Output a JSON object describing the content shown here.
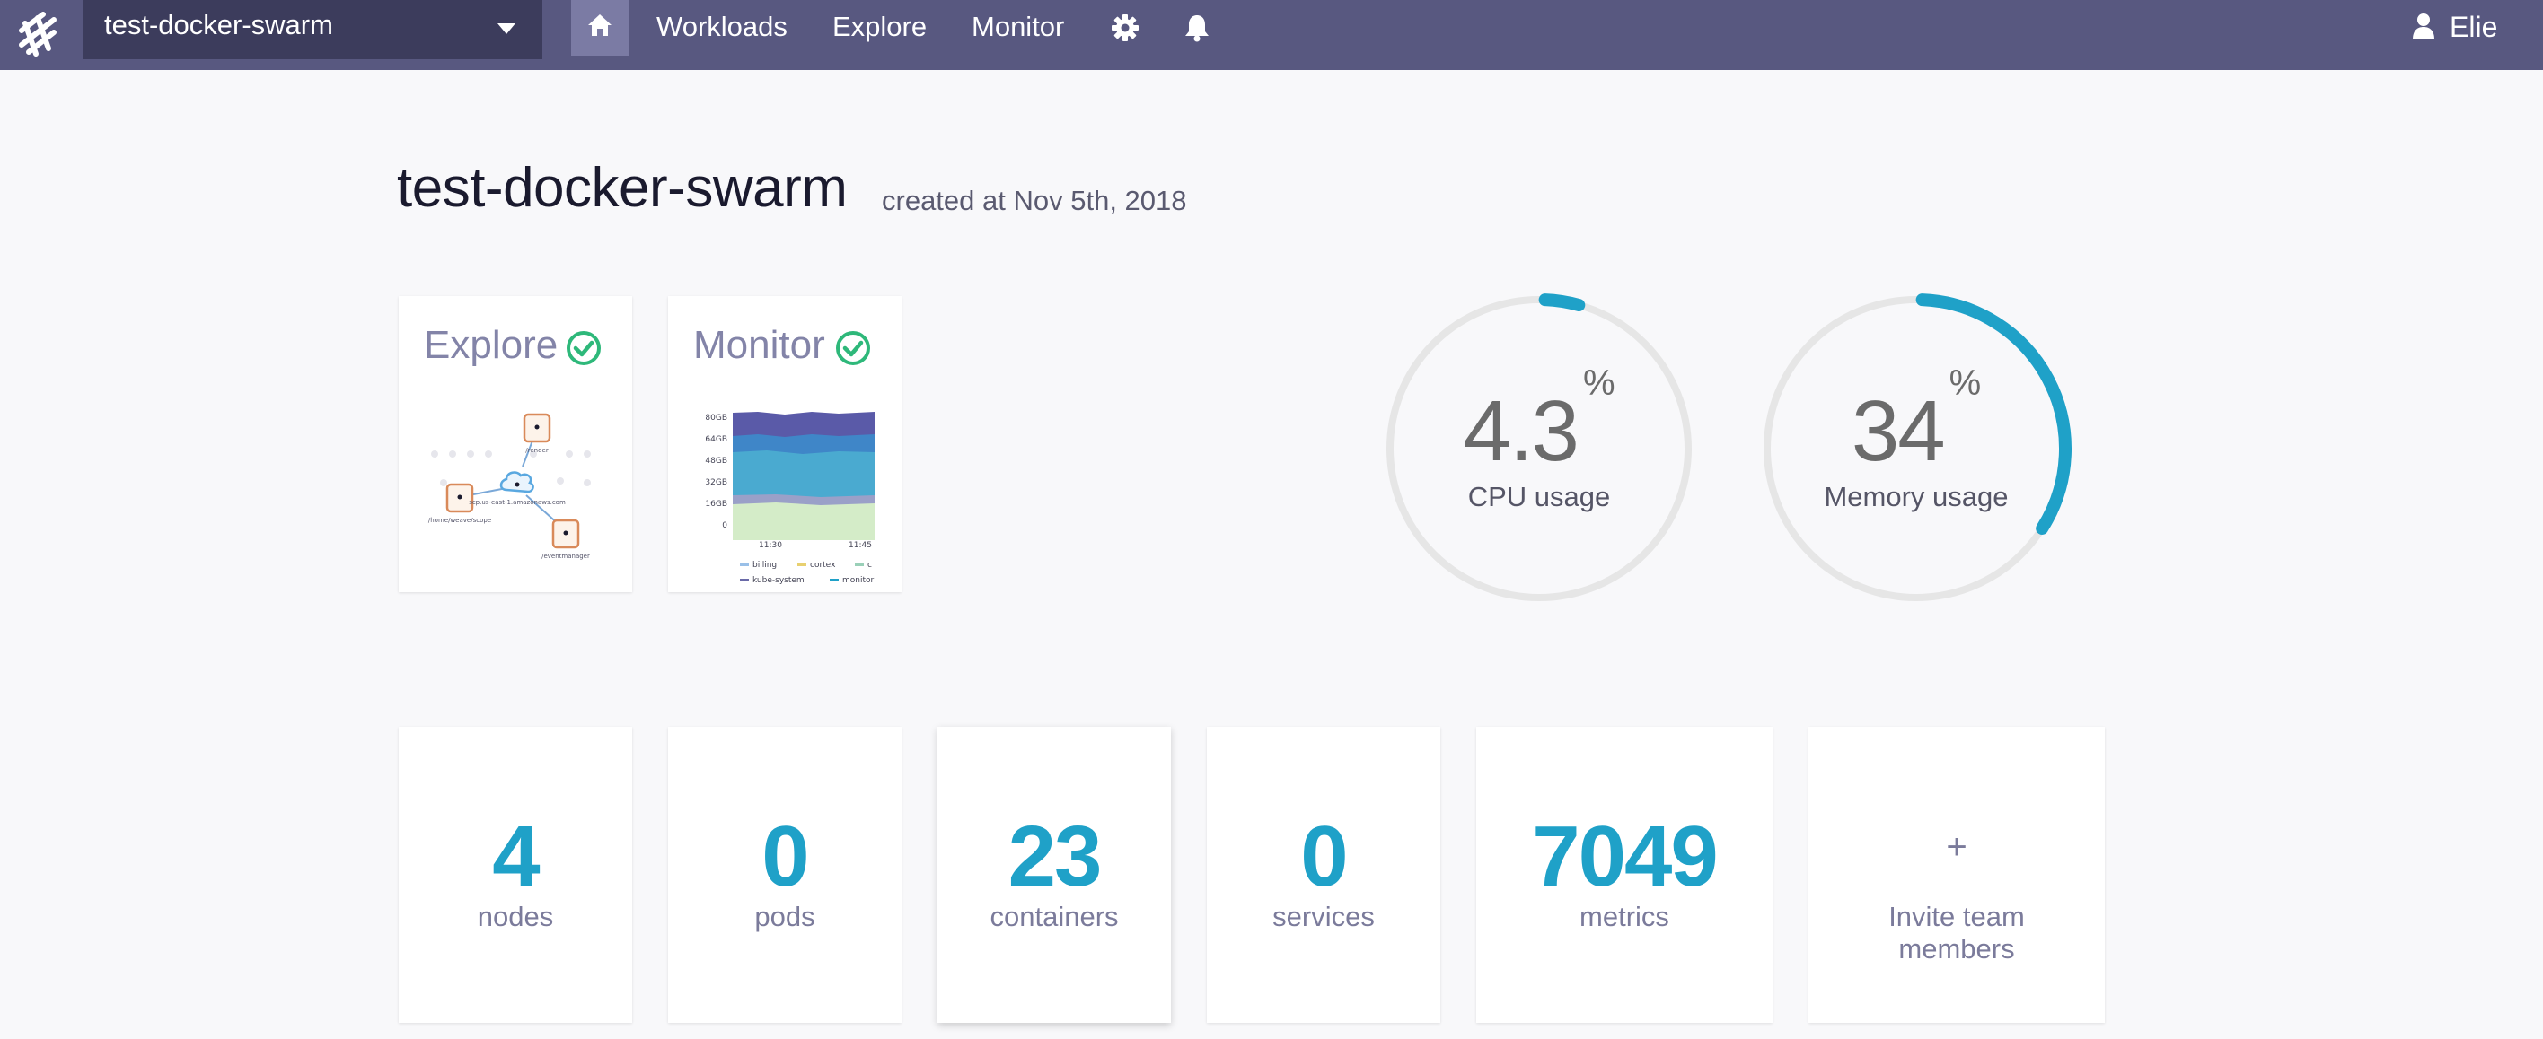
{
  "nav": {
    "instance_name": "test-docker-swarm",
    "links": [
      "Workloads",
      "Explore",
      "Monitor"
    ],
    "user": "Elie"
  },
  "header": {
    "title": "test-docker-swarm",
    "created": "created at Nov 5th, 2018"
  },
  "previews": {
    "explore": {
      "title": "Explore",
      "node_labels": [
        "/render",
        "/home/weave/scope",
        "scp.us-east-1.amazonaws.com",
        "/eventmanager"
      ]
    },
    "monitor": {
      "title": "Monitor",
      "y_ticks": [
        "80GB",
        "64GB",
        "48GB",
        "32GB",
        "16GB",
        "0"
      ],
      "x_ticks": [
        "11:30",
        "11:45"
      ],
      "legend": [
        "billing",
        "cortex",
        "c",
        "kube-system",
        "monitor"
      ]
    }
  },
  "gauges": {
    "cpu": {
      "value": "4.3",
      "unit": "%",
      "label": "CPU usage",
      "fraction": 0.043
    },
    "memory": {
      "value": "34",
      "unit": "%",
      "label": "Memory usage",
      "fraction": 0.34
    }
  },
  "stats": [
    {
      "value": "4",
      "label": "nodes"
    },
    {
      "value": "0",
      "label": "pods"
    },
    {
      "value": "23",
      "label": "containers"
    },
    {
      "value": "0",
      "label": "services"
    },
    {
      "value": "7049",
      "label": "metrics"
    }
  ],
  "invite": {
    "icon": "+",
    "line1": "Invite team",
    "line2": "members"
  },
  "colors": {
    "nav_bg": "#585880",
    "accent": "#1fa1c8",
    "success": "#2eb87a",
    "muted": "#8384a8"
  }
}
